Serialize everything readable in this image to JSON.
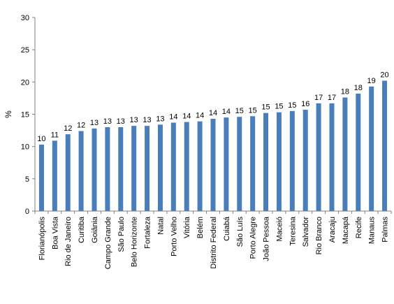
{
  "chart_data": {
    "type": "bar",
    "ylabel": "%",
    "xlabel": "",
    "title": "",
    "ylim": [
      0,
      30
    ],
    "yticks": [
      0,
      5,
      10,
      15,
      20,
      25,
      30
    ],
    "grid": false,
    "legend": "none",
    "bar_color": "#4a7ebb",
    "categories": [
      "Florianópolis",
      "Boa Vista",
      "Rio de Janeiro",
      "Curitiba",
      "Goiânia",
      "Campo Grande",
      "São Paulo",
      "Belo Horizonte",
      "Fortaleza",
      "Natal",
      "Porto Velho",
      "Vitória",
      "Belém",
      "Distrito Federal",
      "Cuiabá",
      "São Luís",
      "Porto Alegre",
      "João Pessoa",
      "Maceió",
      "Teresina",
      "Salvador",
      "Rio Branco",
      "Aracaju",
      "Macapá",
      "Recife",
      "Manaus",
      "Palmas"
    ],
    "values": [
      10.3,
      10.9,
      11.9,
      12.4,
      12.8,
      13.0,
      13.0,
      13.2,
      13.2,
      13.4,
      13.7,
      13.8,
      13.9,
      14.3,
      14.5,
      14.6,
      14.7,
      15.2,
      15.3,
      15.5,
      15.7,
      16.7,
      16.7,
      17.6,
      18.2,
      19.3,
      20.2
    ],
    "data_labels": [
      "10",
      "11",
      "12",
      "12",
      "13",
      "13",
      "13",
      "13",
      "13",
      "13",
      "14",
      "14",
      "14",
      "14",
      "14",
      "15",
      "15",
      "15",
      "15",
      "15",
      "16",
      "17",
      "17",
      "18",
      "18",
      "19",
      "20"
    ]
  }
}
